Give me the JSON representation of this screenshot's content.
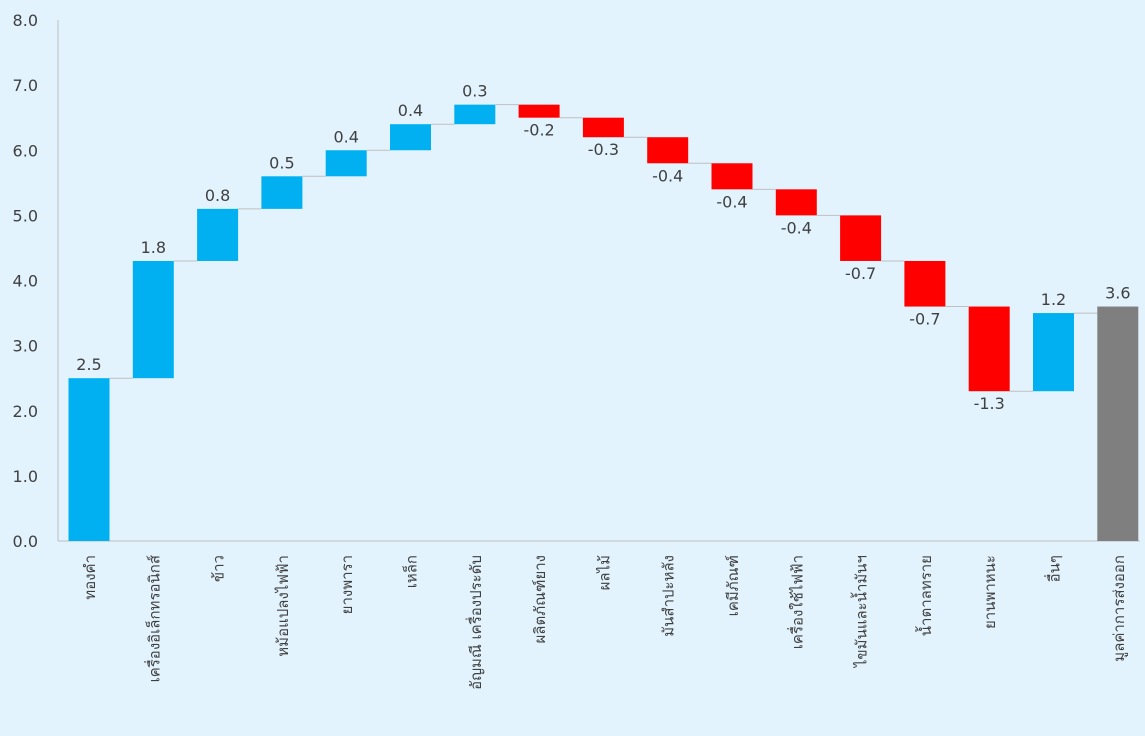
{
  "chart_data": {
    "type": "waterfall",
    "title": "",
    "xlabel": "",
    "ylabel": "",
    "ylim": [
      0,
      8
    ],
    "yticks": [
      "0.0",
      "1.0",
      "2.0",
      "3.0",
      "4.0",
      "5.0",
      "6.0",
      "7.0",
      "8.0"
    ],
    "grid": false,
    "categories": [
      "ทองคำ",
      "เครื่องอิเล็กทรอนิกส์",
      "ข้าว",
      "หม้อแปลงไฟฟ้า",
      "ยางพารา",
      "เหล็ก",
      "อัญมณี เครื่องประดับ",
      "ผลิตภัณฑ์ยาง",
      "ผลไม้",
      "มันสำปะหลัง",
      "เคมีภัณฑ์",
      "เครื่องใช้ไฟฟ้า",
      "ไขมันและน้ำมันฯ",
      "น้ำตาลทราย",
      "ยานพาหนะ",
      "อื่นๆ",
      "มูลค่าการส่งออก"
    ],
    "values": [
      2.5,
      1.8,
      0.8,
      0.5,
      0.4,
      0.4,
      0.3,
      -0.2,
      -0.3,
      -0.4,
      -0.4,
      -0.4,
      -0.7,
      -0.7,
      -1.3,
      1.2,
      3.6
    ],
    "labels": [
      "2.5",
      "1.8",
      "0.8",
      "0.5",
      "0.4",
      "0.4",
      "0.3",
      "-0.2",
      "-0.3",
      "-0.4",
      "-0.4",
      "-0.4",
      "-0.7",
      "-0.7",
      "-1.3",
      "1.2",
      "3.6"
    ],
    "total_index": 16,
    "colors": {
      "increase": "#00b0f0",
      "decrease": "#ff0000",
      "total": "#7f7f7f",
      "connector": "#bfbfbf",
      "axis": "#bfbfbf",
      "text": "#404040"
    }
  }
}
